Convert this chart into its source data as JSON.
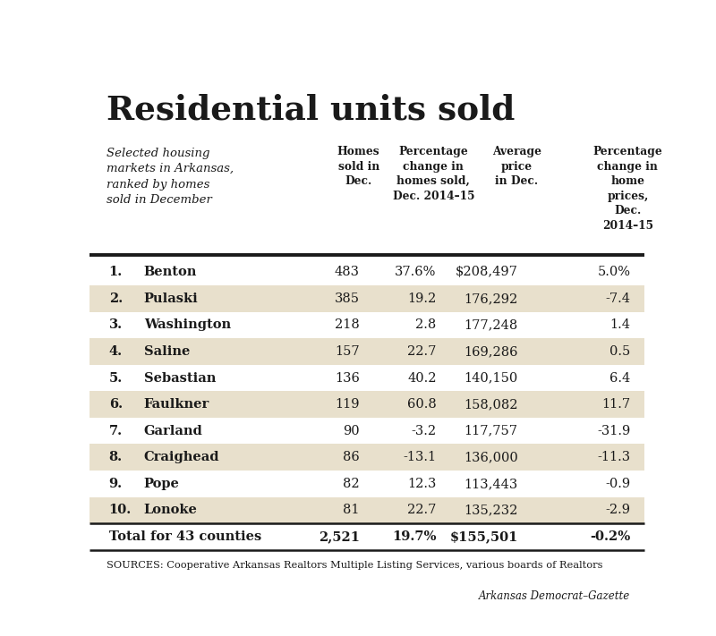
{
  "title": "Residential units sold",
  "subtitle": "Selected housing\nmarkets in Arkansas,\nranked by homes\nsold in December",
  "col_headers": [
    "Homes\nsold in\nDec.",
    "Percentage\nchange in\nhomes sold,\nDec. 2014–15",
    "Average\nprice\nin Dec.",
    "Percentage\nchange in\nhome\nprices,\nDec.\n2014–15"
  ],
  "rows": [
    {
      "rank": "1.",
      "name": "Benton",
      "homes": "483",
      "pct_change": "37.6%",
      "avg_price": "$208,497",
      "price_change": "5.0%",
      "shaded": false
    },
    {
      "rank": "2.",
      "name": "Pulaski",
      "homes": "385",
      "pct_change": "19.2",
      "avg_price": "176,292",
      "price_change": "-7.4",
      "shaded": true
    },
    {
      "rank": "3.",
      "name": "Washington",
      "homes": "218",
      "pct_change": "2.8",
      "avg_price": "177,248",
      "price_change": "1.4",
      "shaded": false
    },
    {
      "rank": "4.",
      "name": "Saline",
      "homes": "157",
      "pct_change": "22.7",
      "avg_price": "169,286",
      "price_change": "0.5",
      "shaded": true
    },
    {
      "rank": "5.",
      "name": "Sebastian",
      "homes": "136",
      "pct_change": "40.2",
      "avg_price": "140,150",
      "price_change": "6.4",
      "shaded": false
    },
    {
      "rank": "6.",
      "name": "Faulkner",
      "homes": "119",
      "pct_change": "60.8",
      "avg_price": "158,082",
      "price_change": "11.7",
      "shaded": true
    },
    {
      "rank": "7.",
      "name": "Garland",
      "homes": "90",
      "pct_change": "-3.2",
      "avg_price": "117,757",
      "price_change": "-31.9",
      "shaded": false
    },
    {
      "rank": "8.",
      "name": "Craighead",
      "homes": "86",
      "pct_change": "-13.1",
      "avg_price": "136,000",
      "price_change": "-11.3",
      "shaded": true
    },
    {
      "rank": "9.",
      "name": "Pope",
      "homes": "82",
      "pct_change": "12.3",
      "avg_price": "113,443",
      "price_change": "-0.9",
      "shaded": false
    },
    {
      "rank": "10.",
      "name": "Lonoke",
      "homes": "81",
      "pct_change": "22.7",
      "avg_price": "135,232",
      "price_change": "-2.9",
      "shaded": true
    }
  ],
  "total_row": {
    "label": "Total for 43 counties",
    "homes": "2,521",
    "pct_change": "19.7%",
    "avg_price": "$155,501",
    "price_change": "-0.2%"
  },
  "sources": "SOURCES: Cooperative Arkansas Realtors Multiple Listing Services, various boards of Realtors",
  "credit": "Arkansas Democrat–Gazette",
  "bg_color": "#ffffff",
  "shaded_color": "#e8e0cc",
  "line_color": "#1a1a1a",
  "text_color": "#1a1a1a"
}
